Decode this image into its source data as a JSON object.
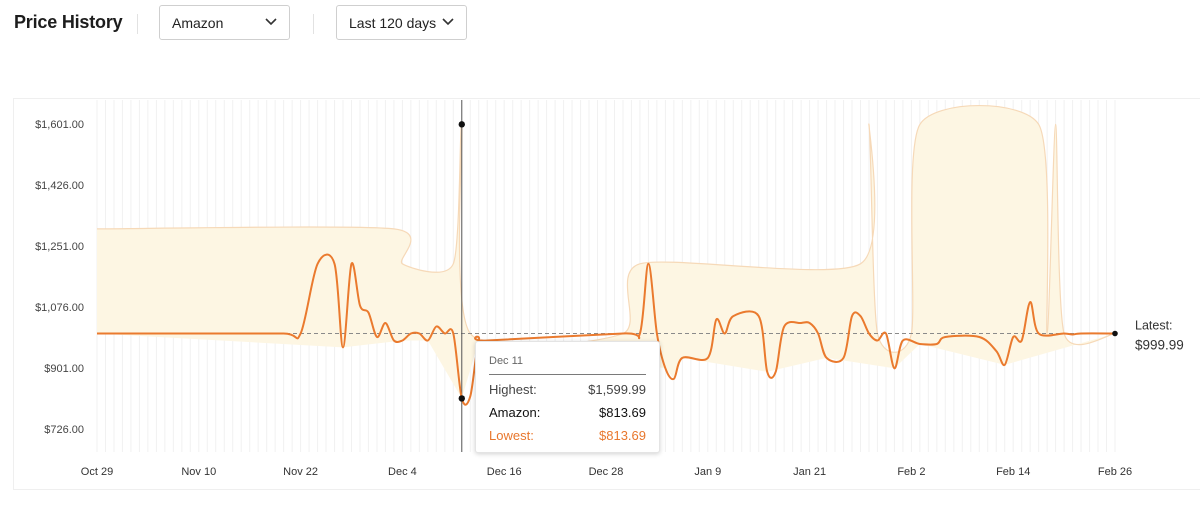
{
  "header": {
    "title": "Price History",
    "retailer_select": {
      "value": "Amazon"
    },
    "range_select": {
      "value": "Last 120 days"
    }
  },
  "colors": {
    "line": "#ea7a2e",
    "band_fill": "#fdf6e3",
    "band_edge": "#f6d9b8",
    "latest_ref": "#8a8a8a",
    "lowest_text": "#e8772d"
  },
  "tooltip": {
    "date": "Dec 11",
    "rows": [
      {
        "label": "Highest:",
        "value": "$1,599.99"
      },
      {
        "label": "Amazon:",
        "value": "$813.69"
      },
      {
        "label": "Lowest:",
        "value": "$813.69"
      }
    ]
  },
  "latest": {
    "label": "Latest:",
    "value": "$999.99"
  },
  "chart_data": {
    "type": "line",
    "x_unit": "date",
    "ylim": [
      640,
      1601
    ],
    "y_ticks": [
      1601,
      1426,
      1251,
      1076,
      901,
      726
    ],
    "y_tick_labels": [
      "$1,601.00",
      "$1,426.00",
      "$1,251.00",
      "$1,076.00",
      "$901.00",
      "$726.00"
    ],
    "x_ticks": [
      "2023-10-29",
      "2023-11-10",
      "2023-11-22",
      "2023-12-04",
      "2023-12-16",
      "2023-12-28",
      "2024-01-09",
      "2024-01-21",
      "2024-02-02",
      "2024-02-14",
      "2024-02-26"
    ],
    "x_tick_labels": [
      "Oct 29",
      "Nov 10",
      "Nov 22",
      "Dec 4",
      "Dec 16",
      "Dec 28",
      "Jan 9",
      "Jan 21",
      "Feb 2",
      "Feb 14",
      "Feb 26"
    ],
    "hover": {
      "x": "2023-12-11",
      "highest": 1599.99,
      "amazon": 813.69,
      "lowest": 813.69
    },
    "latest_price": 999.99,
    "series": [
      {
        "name": "Amazon",
        "points": [
          [
            "2023-10-29",
            999.99
          ],
          [
            "2023-11-10",
            999.99
          ],
          [
            "2023-11-20",
            999.99
          ],
          [
            "2023-11-22",
            999.99
          ],
          [
            "2023-11-24",
            1199.99
          ],
          [
            "2023-11-26",
            1199.99
          ],
          [
            "2023-11-27",
            960
          ],
          [
            "2023-11-28",
            1199.99
          ],
          [
            "2023-11-29",
            1080
          ],
          [
            "2023-11-30",
            1060
          ],
          [
            "2023-12-01",
            990
          ],
          [
            "2023-12-02",
            1030
          ],
          [
            "2023-12-03",
            980
          ],
          [
            "2023-12-04",
            980
          ],
          [
            "2023-12-05",
            999.99
          ],
          [
            "2023-12-06",
            999.99
          ],
          [
            "2023-12-07",
            979.99
          ],
          [
            "2023-12-08",
            1020
          ],
          [
            "2023-12-09",
            999.99
          ],
          [
            "2023-12-10",
            999.99
          ],
          [
            "2023-12-11",
            813.69
          ],
          [
            "2023-12-12",
            820
          ],
          [
            "2023-12-13",
            980
          ],
          [
            "2023-12-14",
            980
          ],
          [
            "2023-12-30",
            999.99
          ],
          [
            "2024-01-01",
            999.99
          ],
          [
            "2024-01-02",
            1199.99
          ],
          [
            "2024-01-03",
            999.99
          ],
          [
            "2024-01-04",
            900
          ],
          [
            "2024-01-05",
            870
          ],
          [
            "2024-01-06",
            929.99
          ],
          [
            "2024-01-09",
            929.99
          ],
          [
            "2024-01-10",
            1040
          ],
          [
            "2024-01-11",
            999.99
          ],
          [
            "2024-01-12",
            1049.99
          ],
          [
            "2024-01-15",
            1049.99
          ],
          [
            "2024-01-16",
            890
          ],
          [
            "2024-01-17",
            890
          ],
          [
            "2024-01-18",
            1020
          ],
          [
            "2024-01-20",
            1030
          ],
          [
            "2024-01-21",
            1030
          ],
          [
            "2024-01-22",
            999.99
          ],
          [
            "2024-01-23",
            929.99
          ],
          [
            "2024-01-25",
            929.99
          ],
          [
            "2024-01-26",
            1049.99
          ],
          [
            "2024-01-27",
            1049.99
          ],
          [
            "2024-01-28",
            999.99
          ],
          [
            "2024-01-29",
            979.99
          ],
          [
            "2024-01-30",
            999.99
          ],
          [
            "2024-01-31",
            900
          ],
          [
            "2024-02-01",
            979.99
          ],
          [
            "2024-02-03",
            969.99
          ],
          [
            "2024-02-05",
            969.99
          ],
          [
            "2024-02-06",
            989.99
          ],
          [
            "2024-02-10",
            989.99
          ],
          [
            "2024-02-12",
            949.99
          ],
          [
            "2024-02-13",
            909.99
          ],
          [
            "2024-02-14",
            989.99
          ],
          [
            "2024-02-15",
            979.99
          ],
          [
            "2024-02-16",
            1089.99
          ],
          [
            "2024-02-17",
            999.99
          ],
          [
            "2024-02-20",
            999.99
          ],
          [
            "2024-02-21",
            997
          ],
          [
            "2024-02-22",
            999.99
          ],
          [
            "2024-02-26",
            999.99
          ]
        ]
      },
      {
        "name": "Highest",
        "points": [
          [
            "2023-10-29",
            1299.99
          ],
          [
            "2023-12-03",
            1299.99
          ],
          [
            "2023-12-04",
            1199.99
          ],
          [
            "2023-12-10",
            1199.99
          ],
          [
            "2023-12-11",
            1599.99
          ],
          [
            "2023-12-12",
            999.99
          ],
          [
            "2023-12-30",
            999.99
          ],
          [
            "2024-01-01",
            1199.99
          ],
          [
            "2024-01-27",
            1199.99
          ],
          [
            "2024-01-28",
            1599.99
          ],
          [
            "2024-01-29",
            999.99
          ],
          [
            "2024-02-02",
            999.99
          ],
          [
            "2024-02-03",
            1599.99
          ],
          [
            "2024-02-17",
            1599.99
          ],
          [
            "2024-02-18",
            999.99
          ],
          [
            "2024-02-19",
            1599.99
          ],
          [
            "2024-02-20",
            999.99
          ],
          [
            "2024-02-26",
            999.99
          ]
        ]
      },
      {
        "name": "Lowest",
        "points": [
          [
            "2023-10-29",
            999.99
          ],
          [
            "2023-11-27",
            960
          ],
          [
            "2023-12-04",
            979.99
          ],
          [
            "2023-12-07",
            979.99
          ],
          [
            "2023-12-11",
            813.69
          ],
          [
            "2023-12-13",
            980
          ],
          [
            "2024-01-04",
            900
          ],
          [
            "2024-01-05",
            870
          ],
          [
            "2024-01-06",
            929.99
          ],
          [
            "2024-01-16",
            890
          ],
          [
            "2024-01-23",
            929.99
          ],
          [
            "2024-01-31",
            900
          ],
          [
            "2024-02-03",
            969.99
          ],
          [
            "2024-02-13",
            909.99
          ],
          [
            "2024-02-26",
            999.99
          ]
        ]
      }
    ]
  }
}
